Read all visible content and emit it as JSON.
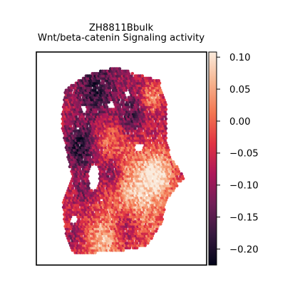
{
  "chart_data": {
    "type": "heatmap",
    "title_line1": "ZH8811Bbulk",
    "title_line2": "Wnt/beta-catenin Signaling activity",
    "colorbar": {
      "vmin": -0.225,
      "vmax": 0.108,
      "ticks": [
        0.1,
        0.05,
        0.0,
        -0.05,
        -0.1,
        -0.15,
        -0.2
      ],
      "tick_labels": [
        "0.10",
        "0.05",
        "0.00",
        "−0.05",
        "−0.10",
        "−0.15",
        "−0.20"
      ],
      "colormap": "rocket",
      "stops": [
        "#03051a",
        "#36193e",
        "#701f57",
        "#ad1759",
        "#e13342",
        "#f37651",
        "#f6b48f",
        "#faebdd"
      ]
    },
    "spatial_field": {
      "x_range": [
        0,
        1
      ],
      "y_range": [
        0,
        1
      ],
      "xlim": [
        -0.18,
        1.18
      ],
      "ylim": [
        -0.04,
        1.08
      ],
      "outline": [
        [
          0.12,
          0.02
        ],
        [
          0.48,
          0.03
        ],
        [
          0.7,
          0.06
        ],
        [
          0.82,
          0.18
        ],
        [
          0.86,
          0.3
        ],
        [
          1.0,
          0.42
        ],
        [
          0.9,
          0.52
        ],
        [
          0.86,
          0.6
        ],
        [
          0.86,
          0.8
        ],
        [
          0.8,
          0.93
        ],
        [
          0.6,
          0.97
        ],
        [
          0.45,
          1.0
        ],
        [
          0.22,
          0.96
        ],
        [
          0.05,
          0.88
        ],
        [
          0.02,
          0.7
        ],
        [
          0.06,
          0.56
        ],
        [
          0.1,
          0.42
        ],
        [
          0.03,
          0.28
        ],
        [
          0.06,
          0.1
        ]
      ],
      "holes": [
        [
          0.28,
          0.42,
          0.045,
          0.07
        ],
        [
          0.42,
          0.8,
          0.03,
          0.02
        ],
        [
          0.64,
          0.58,
          0.04,
          0.02
        ],
        [
          0.2,
          0.78,
          0.025,
          0.02
        ],
        [
          0.55,
          0.86,
          0.02,
          0.02
        ],
        [
          0.12,
          0.2,
          0.03,
          0.025
        ]
      ],
      "features": [
        {
          "x": 0.62,
          "y": 0.35,
          "r": 0.22,
          "v": 0.08
        },
        {
          "x": 0.8,
          "y": 0.45,
          "r": 0.12,
          "v": 0.07
        },
        {
          "x": 0.35,
          "y": 0.08,
          "r": 0.12,
          "v": 0.05
        },
        {
          "x": 0.75,
          "y": 0.85,
          "r": 0.08,
          "v": 0.06
        },
        {
          "x": 0.4,
          "y": 0.6,
          "r": 0.12,
          "v": 0.02
        },
        {
          "x": 0.18,
          "y": 0.58,
          "r": 0.12,
          "v": -0.18
        },
        {
          "x": 0.42,
          "y": 0.45,
          "r": 0.1,
          "v": -0.16
        },
        {
          "x": 0.55,
          "y": 0.17,
          "r": 0.1,
          "v": -0.15
        },
        {
          "x": 0.3,
          "y": 0.88,
          "r": 0.14,
          "v": -0.15
        },
        {
          "x": 0.58,
          "y": 0.74,
          "r": 0.1,
          "v": -0.14
        },
        {
          "x": 0.2,
          "y": 0.35,
          "r": 0.09,
          "v": -0.12
        },
        {
          "x": 0.12,
          "y": 0.1,
          "r": 0.08,
          "v": -0.12
        }
      ]
    }
  }
}
